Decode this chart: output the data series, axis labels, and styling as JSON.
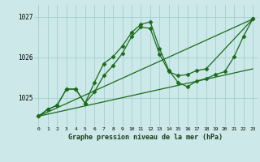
{
  "xlabel": "Graphe pression niveau de la mer (hPa)",
  "bg_color": "#cce8e8",
  "line_color": "#1a6b1a",
  "grid_color": "#99cccc",
  "ylim": [
    1024.3,
    1027.3
  ],
  "xlim": [
    -0.5,
    23.5
  ],
  "yticks": [
    1025,
    1026,
    1027
  ],
  "xticks": [
    0,
    1,
    2,
    3,
    4,
    5,
    6,
    7,
    8,
    9,
    10,
    11,
    12,
    13,
    14,
    15,
    16,
    17,
    18,
    19,
    20,
    21,
    22,
    23
  ],
  "series": [
    {
      "x": [
        0,
        1,
        2,
        3,
        4,
        5,
        6,
        7,
        8,
        9,
        10,
        11,
        12,
        13,
        14,
        15,
        16,
        17,
        18,
        19,
        20,
        21,
        22,
        23
      ],
      "y": [
        1024.55,
        1024.72,
        1024.82,
        1025.22,
        1025.22,
        1024.87,
        1025.38,
        1025.85,
        1026.02,
        1026.28,
        1026.62,
        1026.82,
        1026.88,
        1026.22,
        1025.68,
        1025.38,
        1025.28,
        1025.42,
        1025.48,
        1025.58,
        1025.65,
        1026.02,
        1026.52,
        1026.95
      ],
      "linestyle": "-",
      "marker": "D",
      "markersize": 2.5,
      "linewidth": 0.9
    },
    {
      "x": [
        0,
        1,
        2,
        3,
        4,
        5,
        6,
        7,
        8,
        9,
        10,
        11,
        12,
        13,
        14,
        15,
        16,
        17,
        18,
        23
      ],
      "y": [
        1024.55,
        1024.72,
        1024.82,
        1025.22,
        1025.22,
        1024.87,
        1025.15,
        1025.55,
        1025.8,
        1026.1,
        1026.52,
        1026.75,
        1026.72,
        1026.08,
        1025.65,
        1025.55,
        1025.58,
        1025.68,
        1025.72,
        1026.95
      ],
      "linestyle": "-",
      "marker": "D",
      "markersize": 2.5,
      "linewidth": 0.9
    },
    {
      "x": [
        0,
        23
      ],
      "y": [
        1024.55,
        1026.95
      ],
      "linestyle": "-",
      "marker": null,
      "markersize": 0,
      "linewidth": 0.9
    },
    {
      "x": [
        0,
        23
      ],
      "y": [
        1024.55,
        1025.72
      ],
      "linestyle": "-",
      "marker": null,
      "markersize": 0,
      "linewidth": 0.9
    }
  ]
}
